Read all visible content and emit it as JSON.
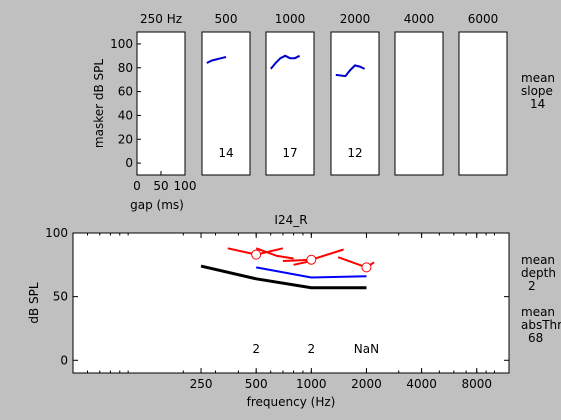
{
  "chart_data": [
    {
      "type": "line",
      "panels": [
        {
          "title": "250 Hz",
          "series": [],
          "slope_label": ""
        },
        {
          "title": "500",
          "series": [
            {
              "color": "#0000cc",
              "points": [
                [
                  10,
                  84
                ],
                [
                  20,
                  86
                ],
                [
                  30,
                  87
                ],
                [
                  40,
                  88
                ],
                [
                  50,
                  89
                ]
              ]
            }
          ],
          "slope_label": "14"
        },
        {
          "title": "1000",
          "series": [
            {
              "color": "#0000cc",
              "points": [
                [
                  10,
                  79
                ],
                [
                  20,
                  84
                ],
                [
                  30,
                  88
                ],
                [
                  40,
                  90
                ],
                [
                  50,
                  88
                ],
                [
                  60,
                  88
                ],
                [
                  70,
                  90
                ]
              ]
            }
          ],
          "slope_label": "17"
        },
        {
          "title": "2000",
          "series": [
            {
              "color": "#0000cc",
              "points": [
                [
                  10,
                  74
                ],
                [
                  30,
                  73
                ],
                [
                  40,
                  78
                ],
                [
                  50,
                  82
                ],
                [
                  60,
                  81
                ],
                [
                  70,
                  79
                ]
              ]
            }
          ],
          "slope_label": "12"
        },
        {
          "title": "4000",
          "series": [],
          "slope_label": ""
        },
        {
          "title": "6000",
          "series": [],
          "slope_label": ""
        }
      ],
      "first_panel_axes": {
        "ylabel": "masker dB SPL",
        "xlabel": "gap (ms)",
        "yticks": [
          0,
          20,
          40,
          60,
          80,
          100
        ],
        "xticks": [
          0,
          50,
          100
        ],
        "xlim": [
          0,
          100
        ],
        "ylim": [
          -10,
          110
        ]
      },
      "side_label": {
        "lines": [
          "mean",
          "slope"
        ],
        "value": "14"
      }
    },
    {
      "type": "line",
      "title": "I24_R",
      "xlabel": "frequency (Hz)",
      "ylabel": "dB SPL",
      "xscale": "log",
      "xlim": [
        50,
        12000
      ],
      "ylim": [
        -10,
        100
      ],
      "xticks": [
        250,
        500,
        1000,
        2000,
        4000,
        8000
      ],
      "yticks": [
        0,
        50,
        100
      ],
      "series": [
        {
          "color": "#000000",
          "x": [
            250,
            500,
            1000,
            2000
          ],
          "y": [
            74,
            64,
            57,
            57
          ]
        },
        {
          "color": "#0000ff",
          "x": [
            500,
            1000,
            2000
          ],
          "y": [
            73,
            65,
            66
          ]
        },
        {
          "color": "#ff0000",
          "x": [
            350,
            500,
            700
          ],
          "y": [
            88,
            83,
            88
          ]
        },
        {
          "color": "#ff0000",
          "x": [
            500,
            650,
            800
          ],
          "y": [
            88,
            82,
            80
          ]
        },
        {
          "color": "#ff0000",
          "x": [
            700,
            1000,
            1500
          ],
          "y": [
            78,
            79,
            87
          ]
        },
        {
          "color": "#ff0000",
          "x": [
            800,
            1000
          ],
          "y": [
            75,
            78
          ]
        },
        {
          "color": "#ff0000",
          "x": [
            1400,
            2000,
            2200
          ],
          "y": [
            81,
            73,
            77
          ]
        }
      ],
      "markers": [
        {
          "color": "#ff0000",
          "x": 500,
          "y": 83
        },
        {
          "color": "#ff0000",
          "x": 1000,
          "y": 79
        },
        {
          "color": "#ff0000",
          "x": 2000,
          "y": 73
        }
      ],
      "annotations": [
        {
          "x": 500,
          "text": "2"
        },
        {
          "x": 1000,
          "text": "2"
        },
        {
          "x": 2000,
          "text": "NaN"
        }
      ],
      "side_labels": [
        {
          "lines": [
            "mean",
            "depth"
          ],
          "value": "2"
        },
        {
          "lines": [
            "mean",
            "absThr"
          ],
          "value": "68"
        }
      ]
    }
  ]
}
